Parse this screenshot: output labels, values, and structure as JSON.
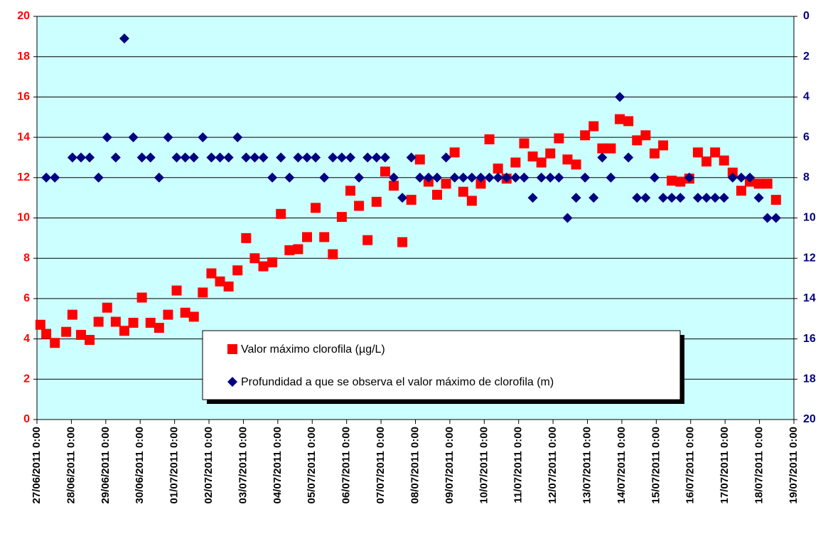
{
  "chart_data": {
    "type": "scatter",
    "xlim": [
      0,
      22
    ],
    "xticks": [
      {
        "value": 0,
        "label": "27/06/2011 0:00"
      },
      {
        "value": 1,
        "label": "28/06/2011 0:00"
      },
      {
        "value": 2,
        "label": "29/06/2011 0:00"
      },
      {
        "value": 3,
        "label": "30/06/2011 0:00"
      },
      {
        "value": 4,
        "label": "01/07/2011 0:00"
      },
      {
        "value": 5,
        "label": "02/07/2011 0:00"
      },
      {
        "value": 6,
        "label": "03/07/2011 0:00"
      },
      {
        "value": 7,
        "label": "04/07/2011 0:00"
      },
      {
        "value": 8,
        "label": "05/07/2011 0:00"
      },
      {
        "value": 9,
        "label": "06/07/2011 0:00"
      },
      {
        "value": 10,
        "label": "07/07/2011 0:00"
      },
      {
        "value": 11,
        "label": "08/07/2011 0:00"
      },
      {
        "value": 12,
        "label": "09/07/2011 0:00"
      },
      {
        "value": 13,
        "label": "10/07/2011 0:00"
      },
      {
        "value": 14,
        "label": "11/07/2011 0:00"
      },
      {
        "value": 15,
        "label": "12/07/2011 0:00"
      },
      {
        "value": 16,
        "label": "13/07/2011 0:00"
      },
      {
        "value": 17,
        "label": "14/07/2011 0:00"
      },
      {
        "value": 18,
        "label": "15/07/2011 0:00"
      },
      {
        "value": 19,
        "label": "16/07/2011 0:00"
      },
      {
        "value": 20,
        "label": "17/07/2011 0:00"
      },
      {
        "value": 21,
        "label": "18/07/2011 0:00"
      },
      {
        "value": 22,
        "label": "19/07/2011 0:00"
      }
    ],
    "ylim": [
      0,
      20
    ],
    "yticks": [
      0,
      2,
      4,
      6,
      8,
      10,
      12,
      14,
      16,
      18,
      20
    ],
    "y2lim": [
      0,
      20
    ],
    "y2ticks": [
      0,
      2,
      4,
      6,
      8,
      10,
      12,
      14,
      16,
      18,
      20
    ],
    "y2_inverted": true,
    "grid": true,
    "series": [
      {
        "name": "Valor máximo clorofila (µg/L)",
        "color": "#ff0000",
        "marker": "square",
        "x": [
          0.1,
          0.27,
          0.52,
          0.85,
          1.03,
          1.28,
          1.53,
          1.79,
          2.04,
          2.29,
          2.54,
          2.8,
          3.05,
          3.3,
          3.55,
          3.81,
          4.06,
          4.31,
          4.56,
          4.82,
          5.07,
          5.32,
          5.57,
          5.83,
          6.08,
          6.33,
          6.58,
          6.84,
          7.09,
          7.34,
          7.59,
          7.85,
          8.1,
          8.35,
          8.6,
          8.86,
          9.11,
          9.36,
          9.61,
          9.87,
          10.12,
          10.37,
          10.62,
          10.88,
          11.13,
          11.38,
          11.63,
          11.89,
          12.14,
          12.39,
          12.64,
          12.9,
          13.15,
          13.4,
          13.65,
          13.91,
          14.16,
          14.41,
          14.66,
          14.92,
          15.17,
          15.42,
          15.67,
          15.93,
          16.18,
          16.43,
          16.68,
          16.94,
          17.19,
          17.44,
          17.69,
          17.95,
          18.2,
          18.45,
          18.7,
          18.96,
          19.21,
          19.46,
          19.71,
          19.97,
          20.22,
          20.47,
          20.72,
          20.98,
          21.23,
          21.48
        ],
        "values": [
          4.7,
          4.25,
          3.8,
          4.35,
          5.2,
          4.2,
          3.95,
          4.85,
          5.55,
          4.85,
          4.4,
          4.8,
          6.05,
          4.8,
          4.55,
          5.2,
          6.4,
          5.3,
          5.1,
          6.3,
          7.25,
          6.85,
          6.6,
          7.4,
          9.0,
          8.0,
          7.6,
          7.8,
          10.2,
          8.4,
          8.45,
          9.05,
          10.5,
          9.05,
          8.2,
          10.05,
          11.35,
          10.6,
          8.9,
          10.8,
          12.3,
          11.6,
          8.8,
          10.9,
          12.9,
          11.8,
          11.15,
          11.7,
          13.25,
          11.3,
          10.85,
          11.7,
          13.9,
          12.45,
          11.95,
          12.75,
          13.7,
          13.05,
          12.75,
          13.2,
          13.95,
          12.9,
          12.65,
          14.1,
          14.55,
          13.45,
          13.45,
          14.9,
          14.8,
          13.85,
          14.1,
          13.2,
          13.6,
          11.85,
          11.8,
          11.95,
          13.25,
          12.8,
          13.25,
          12.85,
          12.25,
          11.35,
          11.8,
          11.7,
          11.7,
          10.9
        ]
      },
      {
        "name": "Profundidad a que se observa el valor máximo de clorofila (m)",
        "color": "#000080",
        "marker": "diamond",
        "axis": "y2",
        "x": [
          0.27,
          0.52,
          1.03,
          1.28,
          1.53,
          1.79,
          2.04,
          2.29,
          2.54,
          2.8,
          3.05,
          3.3,
          3.55,
          3.81,
          4.06,
          4.31,
          4.56,
          4.82,
          5.07,
          5.32,
          5.57,
          5.83,
          6.08,
          6.33,
          6.58,
          6.84,
          7.09,
          7.34,
          7.59,
          7.85,
          8.1,
          8.35,
          8.6,
          8.86,
          9.11,
          9.36,
          9.61,
          9.87,
          10.12,
          10.37,
          10.62,
          10.88,
          11.13,
          11.38,
          11.63,
          11.89,
          12.14,
          12.39,
          12.64,
          12.9,
          13.15,
          13.4,
          13.65,
          13.91,
          14.16,
          14.41,
          14.66,
          14.92,
          15.17,
          15.42,
          15.67,
          15.93,
          16.18,
          16.43,
          16.68,
          16.94,
          17.19,
          17.44,
          17.69,
          17.95,
          18.2,
          18.45,
          18.7,
          18.96,
          19.21,
          19.46,
          19.71,
          19.97,
          20.22,
          20.47,
          20.72,
          20.98,
          21.23,
          21.48
        ],
        "values": [
          8,
          8,
          7,
          7,
          7,
          8,
          6,
          7,
          1.1,
          6,
          7,
          7,
          8,
          6,
          7,
          7,
          7,
          6,
          7,
          7,
          7,
          6,
          7,
          7,
          7,
          8,
          7,
          8,
          7,
          7,
          7,
          8,
          7,
          7,
          7,
          8,
          7,
          7,
          7,
          8,
          9,
          7,
          8,
          8,
          8,
          7,
          8,
          8,
          8,
          8,
          8,
          8,
          8,
          8,
          8,
          9,
          8,
          8,
          8,
          10,
          9,
          8,
          9,
          7,
          8,
          4,
          7,
          9,
          9,
          8,
          9,
          9,
          9,
          8,
          9,
          9,
          9,
          9,
          8,
          8,
          8,
          9,
          10,
          10
        ]
      }
    ]
  }
}
